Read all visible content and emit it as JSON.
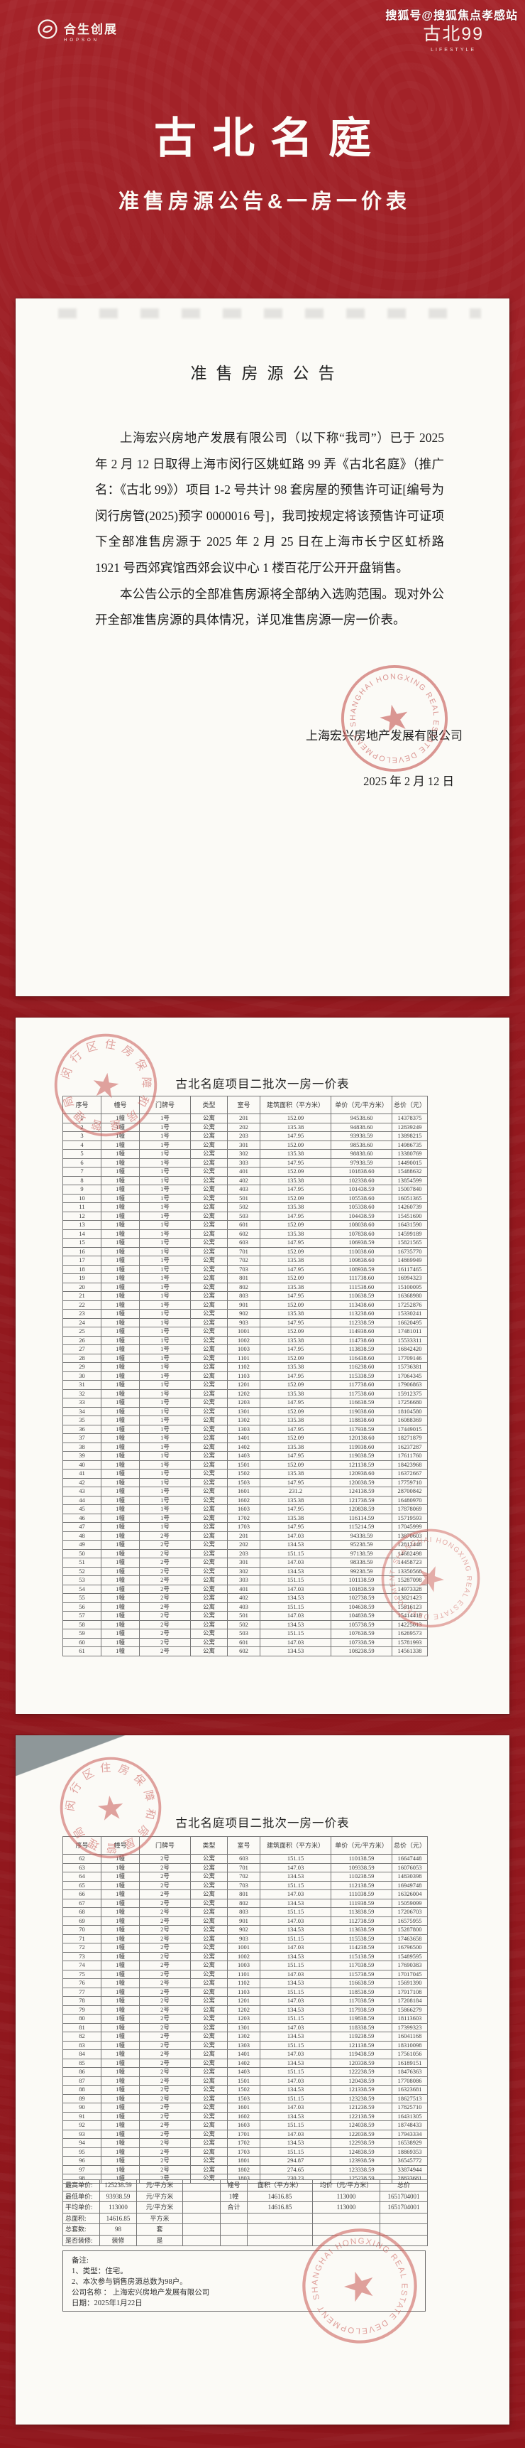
{
  "meta": {
    "watermark": "搜狐号@搜狐焦点孝感站"
  },
  "header": {
    "bg_color": "#9e2026",
    "hopson_logo_cn": "合生创展",
    "hopson_logo_en": "HOPSON",
    "gubei_logo": "古北99",
    "gubei_logo_sub": "LIFESTYLE",
    "title": "古北名庭",
    "subtitle": "准售房源公告&一房一价表"
  },
  "announcement": {
    "title": "准售房源公告",
    "para1": "上海宏兴房地产发展有限公司（以下称“我司”）已于 2025 年 2 月 12 日取得上海市闵行区姚虹路 99 弄《古北名庭》（推广名：《古北 99》）项目 1-2 号共计 98 套房屋的预售许可证[编号为闵行房管(2025)预字 0000016 号]，我司按规定将该预售许可证项下全部准售房源于 2025 年 2 月 25 日在上海市长宁区虹桥路 1921 号西郊宾馆西郊会议中心 1 楼百花厅公开开盘销售。",
    "para2": "本公告公示的全部准售房源将全部纳入选购范围。现对外公开全部准售房源的具体情况，详见准售房源一房一价表。",
    "signature": "上海宏兴房地产发展有限公司",
    "date": "2025 年 2 月 12 日"
  },
  "price_table": {
    "title": "古北名庭项目二批次一房一价表",
    "columns": [
      "序号",
      "幢号",
      "门牌号",
      "类型",
      "室号",
      "建筑面积（平方米）",
      "单价（元/平方米）",
      "总价（元）"
    ],
    "rows_page1": [
      [
        "1",
        "1幢",
        "1号",
        "公寓",
        "201",
        "152.09",
        "94538.60",
        "14378375"
      ],
      [
        "2",
        "1幢",
        "1号",
        "公寓",
        "202",
        "135.38",
        "94838.60",
        "12839249"
      ],
      [
        "3",
        "1幢",
        "1号",
        "公寓",
        "203",
        "147.95",
        "93938.59",
        "13898215"
      ],
      [
        "4",
        "1幢",
        "1号",
        "公寓",
        "301",
        "152.09",
        "98538.60",
        "14986735"
      ],
      [
        "5",
        "1幢",
        "1号",
        "公寓",
        "302",
        "135.38",
        "98838.60",
        "13380769"
      ],
      [
        "6",
        "1幢",
        "1号",
        "公寓",
        "303",
        "147.95",
        "97938.59",
        "14490015"
      ],
      [
        "7",
        "1幢",
        "1号",
        "公寓",
        "401",
        "152.09",
        "101838.60",
        "15488632"
      ],
      [
        "8",
        "1幢",
        "1号",
        "公寓",
        "402",
        "135.38",
        "102338.60",
        "13854599"
      ],
      [
        "9",
        "1幢",
        "1号",
        "公寓",
        "403",
        "147.95",
        "101438.59",
        "15007840"
      ],
      [
        "10",
        "1幢",
        "1号",
        "公寓",
        "501",
        "152.09",
        "105538.60",
        "16051365"
      ],
      [
        "11",
        "1幢",
        "1号",
        "公寓",
        "502",
        "135.38",
        "105338.60",
        "14260739"
      ],
      [
        "12",
        "1幢",
        "1号",
        "公寓",
        "503",
        "147.95",
        "104438.59",
        "15451690"
      ],
      [
        "13",
        "1幢",
        "1号",
        "公寓",
        "601",
        "152.09",
        "108038.60",
        "16431590"
      ],
      [
        "14",
        "1幢",
        "1号",
        "公寓",
        "602",
        "135.38",
        "107838.60",
        "14599189"
      ],
      [
        "15",
        "1幢",
        "1号",
        "公寓",
        "603",
        "147.95",
        "106938.59",
        "15821565"
      ],
      [
        "16",
        "1幢",
        "1号",
        "公寓",
        "701",
        "152.09",
        "110038.60",
        "16735770"
      ],
      [
        "17",
        "1幢",
        "1号",
        "公寓",
        "702",
        "135.38",
        "109838.60",
        "14869949"
      ],
      [
        "18",
        "1幢",
        "1号",
        "公寓",
        "703",
        "147.95",
        "108938.59",
        "16117465"
      ],
      [
        "19",
        "1幢",
        "1号",
        "公寓",
        "801",
        "152.09",
        "111738.60",
        "16994323"
      ],
      [
        "20",
        "1幢",
        "1号",
        "公寓",
        "802",
        "135.38",
        "111538.60",
        "15100095"
      ],
      [
        "21",
        "1幢",
        "1号",
        "公寓",
        "803",
        "147.95",
        "110638.59",
        "16368980"
      ],
      [
        "22",
        "1幢",
        "1号",
        "公寓",
        "901",
        "152.09",
        "113438.60",
        "17252876"
      ],
      [
        "23",
        "1幢",
        "1号",
        "公寓",
        "902",
        "135.38",
        "113238.60",
        "15330241"
      ],
      [
        "24",
        "1幢",
        "1号",
        "公寓",
        "903",
        "147.95",
        "112338.59",
        "16620495"
      ],
      [
        "25",
        "1幢",
        "1号",
        "公寓",
        "1001",
        "152.09",
        "114938.60",
        "17481011"
      ],
      [
        "26",
        "1幢",
        "1号",
        "公寓",
        "1002",
        "135.38",
        "114738.60",
        "15533311"
      ],
      [
        "27",
        "1幢",
        "1号",
        "公寓",
        "1003",
        "147.95",
        "113838.59",
        "16842420"
      ],
      [
        "28",
        "1幢",
        "1号",
        "公寓",
        "1101",
        "152.09",
        "116438.60",
        "17709146"
      ],
      [
        "29",
        "1幢",
        "1号",
        "公寓",
        "1102",
        "135.38",
        "116238.60",
        "15736381"
      ],
      [
        "30",
        "1幢",
        "1号",
        "公寓",
        "1103",
        "147.95",
        "115338.59",
        "17064345"
      ],
      [
        "31",
        "1幢",
        "1号",
        "公寓",
        "1201",
        "152.09",
        "117738.60",
        "17906863"
      ],
      [
        "32",
        "1幢",
        "1号",
        "公寓",
        "1202",
        "135.38",
        "117538.60",
        "15912375"
      ],
      [
        "33",
        "1幢",
        "1号",
        "公寓",
        "1203",
        "147.95",
        "116638.59",
        "17256680"
      ],
      [
        "34",
        "1幢",
        "1号",
        "公寓",
        "1301",
        "152.09",
        "119038.60",
        "18104580"
      ],
      [
        "35",
        "1幢",
        "1号",
        "公寓",
        "1302",
        "135.38",
        "118838.60",
        "16088369"
      ],
      [
        "36",
        "1幢",
        "1号",
        "公寓",
        "1303",
        "147.95",
        "117938.59",
        "17449015"
      ],
      [
        "37",
        "1幢",
        "1号",
        "公寓",
        "1401",
        "152.09",
        "120138.60",
        "18271879"
      ],
      [
        "38",
        "1幢",
        "1号",
        "公寓",
        "1402",
        "135.38",
        "119938.60",
        "16237287"
      ],
      [
        "39",
        "1幢",
        "1号",
        "公寓",
        "1403",
        "147.95",
        "119038.59",
        "17611760"
      ],
      [
        "40",
        "1幢",
        "1号",
        "公寓",
        "1501",
        "152.09",
        "121138.59",
        "18423968"
      ],
      [
        "41",
        "1幢",
        "1号",
        "公寓",
        "1502",
        "135.38",
        "120938.60",
        "16372667"
      ],
      [
        "42",
        "1幢",
        "1号",
        "公寓",
        "1503",
        "147.95",
        "120038.59",
        "17759710"
      ],
      [
        "43",
        "1幢",
        "1号",
        "公寓",
        "1601",
        "231.2",
        "124138.59",
        "28700842"
      ],
      [
        "44",
        "1幢",
        "1号",
        "公寓",
        "1602",
        "135.38",
        "121738.59",
        "16480970"
      ],
      [
        "45",
        "1幢",
        "1号",
        "公寓",
        "1603",
        "147.95",
        "120838.59",
        "17878069"
      ],
      [
        "46",
        "1幢",
        "1号",
        "公寓",
        "1702",
        "135.38",
        "116114.59",
        "15719593"
      ],
      [
        "47",
        "1幢",
        "1号",
        "公寓",
        "1703",
        "147.95",
        "115214.59",
        "17045999"
      ],
      [
        "48",
        "1幢",
        "2号",
        "公寓",
        "201",
        "147.03",
        "94338.59",
        "13870603"
      ],
      [
        "49",
        "1幢",
        "2号",
        "公寓",
        "202",
        "134.53",
        "95238.59",
        "12812448"
      ],
      [
        "50",
        "1幢",
        "2号",
        "公寓",
        "203",
        "151.15",
        "97138.59",
        "14682498"
      ],
      [
        "51",
        "1幢",
        "2号",
        "公寓",
        "301",
        "147.03",
        "98338.59",
        "14458723"
      ],
      [
        "52",
        "1幢",
        "2号",
        "公寓",
        "302",
        "134.53",
        "99238.59",
        "13350568"
      ],
      [
        "53",
        "1幢",
        "2号",
        "公寓",
        "303",
        "151.15",
        "101138.59",
        "15287098"
      ],
      [
        "54",
        "1幢",
        "2号",
        "公寓",
        "401",
        "147.03",
        "101838.59",
        "14973328"
      ],
      [
        "55",
        "1幢",
        "2号",
        "公寓",
        "402",
        "134.53",
        "102738.59",
        "13821423"
      ],
      [
        "56",
        "1幢",
        "2号",
        "公寓",
        "403",
        "151.15",
        "104638.59",
        "15816123"
      ],
      [
        "57",
        "1幢",
        "2号",
        "公寓",
        "501",
        "147.03",
        "104838.59",
        "15414418"
      ],
      [
        "58",
        "1幢",
        "2号",
        "公寓",
        "502",
        "134.53",
        "105738.59",
        "14225013"
      ],
      [
        "59",
        "1幢",
        "2号",
        "公寓",
        "503",
        "151.15",
        "107638.59",
        "16269573"
      ],
      [
        "60",
        "1幢",
        "2号",
        "公寓",
        "601",
        "147.03",
        "107338.59",
        "15781993"
      ],
      [
        "61",
        "1幢",
        "2号",
        "公寓",
        "602",
        "134.53",
        "108238.59",
        "14561338"
      ]
    ],
    "rows_page2": [
      [
        "62",
        "1幢",
        "2号",
        "公寓",
        "603",
        "151.15",
        "110138.59",
        "16647448"
      ],
      [
        "63",
        "1幢",
        "2号",
        "公寓",
        "701",
        "147.03",
        "109338.59",
        "16076053"
      ],
      [
        "64",
        "1幢",
        "2号",
        "公寓",
        "702",
        "134.53",
        "110238.59",
        "14830398"
      ],
      [
        "65",
        "1幢",
        "2号",
        "公寓",
        "703",
        "151.15",
        "112138.59",
        "16949748"
      ],
      [
        "66",
        "1幢",
        "2号",
        "公寓",
        "801",
        "147.03",
        "111038.59",
        "16326004"
      ],
      [
        "67",
        "1幢",
        "2号",
        "公寓",
        "802",
        "134.53",
        "111938.59",
        "15059099"
      ],
      [
        "68",
        "1幢",
        "2号",
        "公寓",
        "803",
        "151.15",
        "113838.59",
        "17206703"
      ],
      [
        "69",
        "1幢",
        "2号",
        "公寓",
        "901",
        "147.03",
        "112738.59",
        "16575955"
      ],
      [
        "70",
        "1幢",
        "2号",
        "公寓",
        "902",
        "134.53",
        "113638.59",
        "15287800"
      ],
      [
        "71",
        "1幢",
        "2号",
        "公寓",
        "903",
        "151.15",
        "115538.59",
        "17463658"
      ],
      [
        "72",
        "1幢",
        "2号",
        "公寓",
        "1001",
        "147.03",
        "114238.59",
        "16796500"
      ],
      [
        "73",
        "1幢",
        "2号",
        "公寓",
        "1002",
        "134.53",
        "115138.59",
        "15489595"
      ],
      [
        "74",
        "1幢",
        "2号",
        "公寓",
        "1003",
        "151.15",
        "117038.59",
        "17690383"
      ],
      [
        "75",
        "1幢",
        "2号",
        "公寓",
        "1101",
        "147.03",
        "115738.59",
        "17017045"
      ],
      [
        "76",
        "1幢",
        "2号",
        "公寓",
        "1102",
        "134.53",
        "116638.59",
        "15691390"
      ],
      [
        "77",
        "1幢",
        "2号",
        "公寓",
        "1103",
        "151.15",
        "118538.59",
        "17917108"
      ],
      [
        "78",
        "1幢",
        "2号",
        "公寓",
        "1201",
        "147.03",
        "117038.59",
        "17208184"
      ],
      [
        "79",
        "1幢",
        "2号",
        "公寓",
        "1202",
        "134.53",
        "117938.59",
        "15866279"
      ],
      [
        "80",
        "1幢",
        "2号",
        "公寓",
        "1203",
        "151.15",
        "119838.59",
        "18113603"
      ],
      [
        "81",
        "1幢",
        "2号",
        "公寓",
        "1301",
        "147.03",
        "118338.59",
        "17399323"
      ],
      [
        "82",
        "1幢",
        "2号",
        "公寓",
        "1302",
        "134.53",
        "119238.59",
        "16041168"
      ],
      [
        "83",
        "1幢",
        "2号",
        "公寓",
        "1303",
        "151.15",
        "121138.59",
        "18310098"
      ],
      [
        "84",
        "1幢",
        "2号",
        "公寓",
        "1401",
        "147.03",
        "119438.59",
        "17561056"
      ],
      [
        "85",
        "1幢",
        "2号",
        "公寓",
        "1402",
        "134.53",
        "120338.59",
        "16189151"
      ],
      [
        "86",
        "1幢",
        "2号",
        "公寓",
        "1403",
        "151.15",
        "122238.59",
        "18476363"
      ],
      [
        "87",
        "1幢",
        "2号",
        "公寓",
        "1501",
        "147.03",
        "120438.59",
        "17708086"
      ],
      [
        "88",
        "1幢",
        "2号",
        "公寓",
        "1502",
        "134.53",
        "121338.59",
        "16323681"
      ],
      [
        "89",
        "1幢",
        "2号",
        "公寓",
        "1503",
        "151.15",
        "123238.59",
        "18627513"
      ],
      [
        "90",
        "1幢",
        "2号",
        "公寓",
        "1601",
        "147.03",
        "121238.59",
        "17825710"
      ],
      [
        "91",
        "1幢",
        "2号",
        "公寓",
        "1602",
        "134.53",
        "122138.59",
        "16431305"
      ],
      [
        "92",
        "1幢",
        "2号",
        "公寓",
        "1603",
        "151.15",
        "124038.59",
        "18748433"
      ],
      [
        "93",
        "1幢",
        "2号",
        "公寓",
        "1701",
        "147.03",
        "122038.59",
        "17943334"
      ],
      [
        "94",
        "1幢",
        "2号",
        "公寓",
        "1702",
        "134.53",
        "122938.59",
        "16538929"
      ],
      [
        "95",
        "1幢",
        "2号",
        "公寓",
        "1703",
        "151.15",
        "124838.59",
        "18869353"
      ],
      [
        "96",
        "1幢",
        "2号",
        "公寓",
        "1801",
        "294.87",
        "123938.59",
        "36545772"
      ],
      [
        "97",
        "1幢",
        "2号",
        "公寓",
        "1802",
        "274.65",
        "123338.59",
        "33874944"
      ],
      [
        "98",
        "1幢",
        "2号",
        "公寓",
        "1803",
        "230.23",
        "125238.59",
        "28833681"
      ]
    ]
  },
  "summary_grid": [
    [
      "最高单价:",
      "125238.59",
      "元/平方米",
      "",
      "幢号",
      "面积（平方米）",
      "均价（元/平方米）",
      "总价"
    ],
    [
      "最低单价:",
      "93938.59",
      "元/平方米",
      "",
      "1幢",
      "14616.85",
      "113000",
      "1651704001"
    ],
    [
      "平均单价:",
      "113000",
      "元/平方米",
      "",
      "合计",
      "14616.85",
      "113000",
      "1651704001"
    ],
    [
      "总面积:",
      "14616.85",
      "平方米",
      "",
      "",
      "",
      "",
      ""
    ],
    [
      "总套数:",
      "98",
      "套",
      "",
      "",
      "",
      "",
      ""
    ],
    [
      "是否装修:",
      "装修",
      "是",
      "",
      "",
      "",
      "",
      ""
    ]
  ],
  "notes": {
    "label": "备注:",
    "line1": "1、类型：住宅。",
    "line2": "2、本次参与销售房源总数为98户。",
    "company_label": "公司名称 ： ",
    "company": "上海宏兴房地产发展有限公司",
    "date_label": "日期：",
    "date": "2025年1月22日"
  },
  "seals": {
    "developer_en": "SHANGHAI HONGXING REAL ESTATE DEVELOPMENT CO.,LTD.",
    "bureau_cn": "闵行区住房保障和房屋管理局"
  }
}
